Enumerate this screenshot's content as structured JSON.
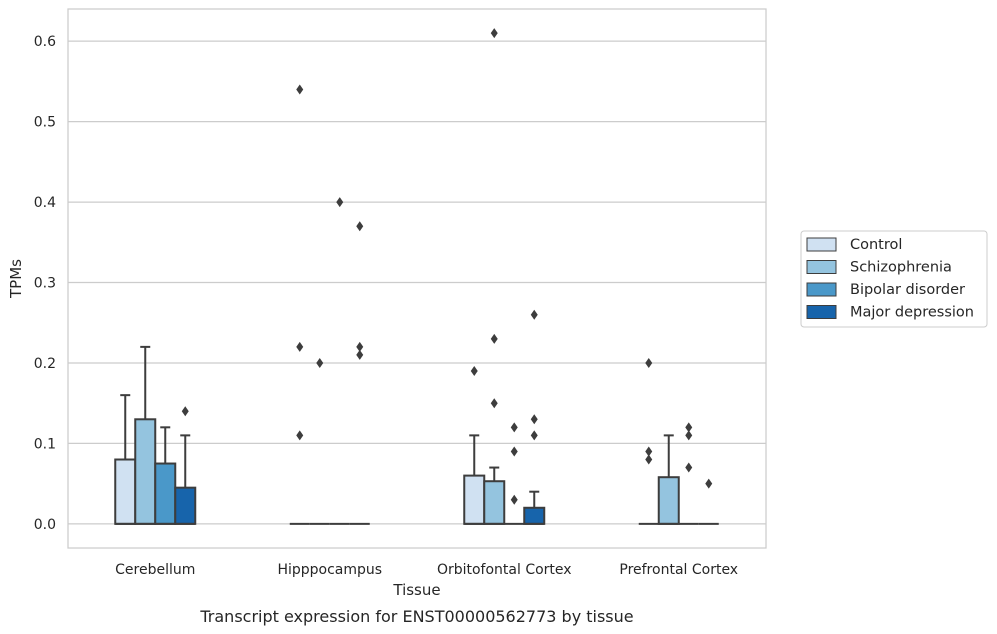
{
  "chart_data": {
    "type": "boxplot",
    "caption": "Transcript expression for ENST00000562773 by tissue",
    "xlabel": "Tissue",
    "ylabel": "TPMs",
    "ylim": [
      -0.03,
      0.64
    ],
    "yticks": [
      0.0,
      0.1,
      0.2,
      0.3,
      0.4,
      0.5,
      0.6
    ],
    "ytick_labels": [
      "0.0",
      "0.1",
      "0.2",
      "0.3",
      "0.4",
      "0.5",
      "0.6"
    ],
    "grid": true,
    "legend_position": "right",
    "categories": [
      "Cerebellum",
      "Hipppocampus",
      "Orbitofontal Cortex",
      "Prefrontal Cortex"
    ],
    "series": [
      {
        "name": "Control",
        "color": "#d0e1f2",
        "boxes": [
          {
            "q1": 0.0,
            "median": 0.0,
            "q3": 0.08,
            "whisker_low": 0.0,
            "whisker_high": 0.16,
            "outliers": []
          },
          {
            "q1": 0.0,
            "median": 0.0,
            "q3": 0.0,
            "whisker_low": 0.0,
            "whisker_high": 0.0,
            "outliers": [
              0.54,
              0.22,
              0.11
            ]
          },
          {
            "q1": 0.0,
            "median": 0.0,
            "q3": 0.06,
            "whisker_low": 0.0,
            "whisker_high": 0.11,
            "outliers": [
              0.19
            ]
          },
          {
            "q1": 0.0,
            "median": 0.0,
            "q3": 0.0,
            "whisker_low": 0.0,
            "whisker_high": 0.0,
            "outliers": [
              0.2,
              0.09,
              0.08
            ]
          }
        ]
      },
      {
        "name": "Schizophrenia",
        "color": "#94c4df",
        "boxes": [
          {
            "q1": 0.0,
            "median": 0.0,
            "q3": 0.13,
            "whisker_low": 0.0,
            "whisker_high": 0.22,
            "outliers": []
          },
          {
            "q1": 0.0,
            "median": 0.0,
            "q3": 0.0,
            "whisker_low": 0.0,
            "whisker_high": 0.0,
            "outliers": [
              0.2
            ]
          },
          {
            "q1": 0.0,
            "median": 0.0,
            "q3": 0.053,
            "whisker_low": 0.0,
            "whisker_high": 0.07,
            "outliers": [
              0.61,
              0.23,
              0.15
            ]
          },
          {
            "q1": 0.0,
            "median": 0.0,
            "q3": 0.058,
            "whisker_low": 0.0,
            "whisker_high": 0.11,
            "outliers": []
          }
        ]
      },
      {
        "name": "Bipolar disorder",
        "color": "#4a98c9",
        "boxes": [
          {
            "q1": 0.0,
            "median": 0.0,
            "q3": 0.075,
            "whisker_low": 0.0,
            "whisker_high": 0.12,
            "outliers": []
          },
          {
            "q1": 0.0,
            "median": 0.0,
            "q3": 0.0,
            "whisker_low": 0.0,
            "whisker_high": 0.0,
            "outliers": [
              0.4
            ]
          },
          {
            "q1": 0.0,
            "median": 0.0,
            "q3": 0.0,
            "whisker_low": 0.0,
            "whisker_high": 0.0,
            "outliers": [
              0.12,
              0.09,
              0.03
            ]
          },
          {
            "q1": 0.0,
            "median": 0.0,
            "q3": 0.0,
            "whisker_low": 0.0,
            "whisker_high": 0.0,
            "outliers": [
              0.12,
              0.11,
              0.07
            ]
          }
        ]
      },
      {
        "name": "Major depression",
        "color": "#1764ab",
        "boxes": [
          {
            "q1": 0.0,
            "median": 0.0,
            "q3": 0.045,
            "whisker_low": 0.0,
            "whisker_high": 0.11,
            "outliers": [
              0.14
            ]
          },
          {
            "q1": 0.0,
            "median": 0.0,
            "q3": 0.0,
            "whisker_low": 0.0,
            "whisker_high": 0.0,
            "outliers": [
              0.37,
              0.22,
              0.21
            ]
          },
          {
            "q1": 0.0,
            "median": 0.0,
            "q3": 0.02,
            "whisker_low": 0.0,
            "whisker_high": 0.04,
            "outliers": [
              0.26,
              0.13,
              0.11
            ]
          },
          {
            "q1": 0.0,
            "median": 0.0,
            "q3": 0.0,
            "whisker_low": 0.0,
            "whisker_high": 0.0,
            "outliers": [
              0.05
            ]
          }
        ]
      }
    ]
  }
}
